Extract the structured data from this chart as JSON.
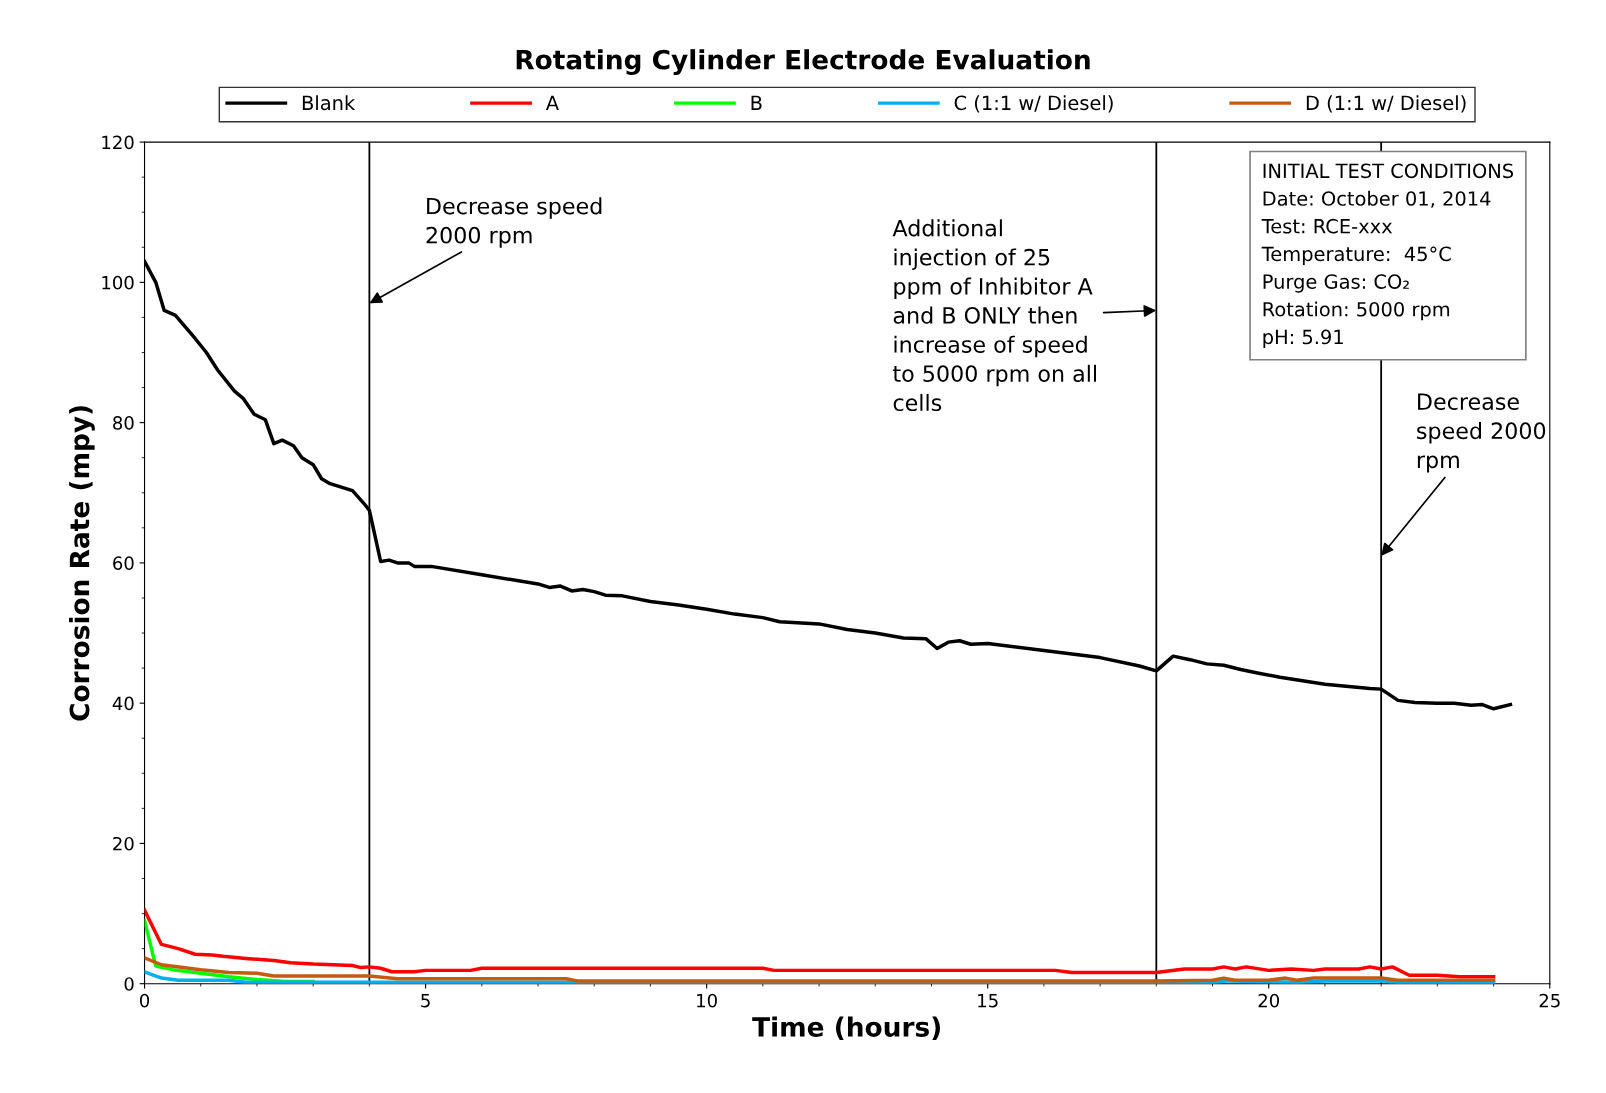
{
  "chart_data": {
    "type": "line",
    "title": "Rotating Cylinder Electrode Evaluation",
    "xlabel": "Time (hours)",
    "ylabel": "Corrosion Rate (mpy)",
    "xlim": [
      0,
      25
    ],
    "xticks": [
      0,
      5,
      10,
      15,
      20,
      25
    ],
    "ylim": [
      0,
      120
    ],
    "yticks": [
      0,
      20,
      40,
      60,
      80,
      100,
      120
    ],
    "grid": false,
    "legend": "top",
    "marker": "none",
    "line_style": "solid",
    "series": [
      {
        "name": "Blank",
        "color": "#000000",
        "x": [
          0,
          0.2,
          0.35,
          0.55,
          0.9,
          1.1,
          1.3,
          1.6,
          1.75,
          1.95,
          2.15,
          2.3,
          2.45,
          2.65,
          2.8,
          3.0,
          3.15,
          3.3,
          3.5,
          3.7,
          3.9,
          4.0,
          4.2,
          4.35,
          4.5,
          4.7,
          4.8,
          5.1,
          6,
          7,
          7.2,
          7.4,
          7.6,
          7.8,
          8,
          8.2,
          8.5,
          9,
          9.5,
          10,
          10.5,
          11,
          11.3,
          12,
          12.5,
          13,
          13.5,
          13.9,
          14.1,
          14.3,
          14.5,
          14.7,
          15,
          16,
          17,
          17.7,
          18,
          18.3,
          18.6,
          18.9,
          19.2,
          19.5,
          19.8,
          20.2,
          21,
          21.8,
          22,
          22.3,
          22.6,
          23.0,
          23.3,
          23.6,
          23.8,
          24.0,
          24.3
        ],
        "values": [
          103,
          100,
          96,
          95.3,
          92,
          90,
          87.5,
          84.5,
          83.5,
          81.2,
          80.4,
          77,
          77.5,
          76.7,
          75,
          74,
          72,
          71.3,
          70.8,
          70.3,
          68.5,
          67.5,
          60.2,
          60.4,
          60,
          60,
          59.5,
          59.5,
          58.3,
          57,
          56.5,
          56.7,
          56,
          56.2,
          55.9,
          55.4,
          55.3,
          54.5,
          54,
          53.4,
          52.7,
          52.2,
          51.6,
          51.3,
          50.5,
          50,
          49.3,
          49.2,
          47.8,
          48.7,
          48.9,
          48.4,
          48.5,
          47.5,
          46.5,
          45.3,
          44.6,
          46.7,
          46.2,
          45.6,
          45.4,
          44.8,
          44.3,
          43.7,
          42.7,
          42.1,
          42,
          40.4,
          40.1,
          40,
          40,
          39.7,
          39.8,
          39.2,
          39.8
        ]
      },
      {
        "name": "A",
        "color": "#ff0000",
        "x": [
          0,
          0.3,
          0.6,
          0.9,
          1.2,
          1.4,
          1.8,
          2.3,
          2.6,
          3,
          3.7,
          3.85,
          4,
          4.2,
          4.4,
          4.8,
          5,
          5.8,
          6,
          11,
          11.2,
          16.2,
          16.5,
          18,
          18.5,
          19,
          19.2,
          19.4,
          19.6,
          20,
          20.4,
          20.8,
          21,
          21.6,
          21.8,
          22,
          22.2,
          22.5,
          23,
          23.4,
          24
        ],
        "values": [
          10.5,
          5.6,
          5,
          4.2,
          4.1,
          3.9,
          3.6,
          3.3,
          3,
          2.8,
          2.6,
          2.3,
          2.4,
          2.2,
          1.7,
          1.7,
          1.9,
          1.9,
          2.2,
          2.2,
          1.9,
          1.9,
          1.6,
          1.6,
          2.1,
          2.1,
          2.4,
          2.1,
          2.4,
          1.9,
          2.1,
          1.9,
          2.1,
          2.1,
          2.4,
          2.1,
          2.4,
          1.2,
          1.2,
          1.0,
          1.0
        ]
      },
      {
        "name": "B",
        "color": "#00ff00",
        "x": [
          0,
          0.2,
          0.5,
          1,
          1.5,
          2,
          2.5,
          3
        ],
        "values": [
          9,
          2.5,
          2,
          1.5,
          1,
          0.6,
          0.3,
          0.3
        ]
      },
      {
        "name": "C (1:1 w/ Diesel)",
        "color": "#00b0f0",
        "x": [
          0,
          0.3,
          0.6,
          1.5,
          1.8,
          18,
          19,
          19.3,
          20.5,
          21,
          22,
          22.3,
          24
        ],
        "values": [
          1.7,
          0.8,
          0.5,
          0.5,
          0.2,
          0.2,
          0.2,
          0.4,
          0.2,
          0.4,
          0.4,
          0.2,
          0.2
        ]
      },
      {
        "name": "D (1:1 w/ Diesel)",
        "color": "#c55a11",
        "x": [
          0,
          0.3,
          1,
          1.5,
          2,
          2.3,
          4,
          4.5,
          7.5,
          7.7,
          18,
          19,
          19.2,
          19.4,
          20,
          20.3,
          20.5,
          20.8,
          22,
          22.3,
          24
        ],
        "values": [
          3.7,
          2.7,
          2,
          1.6,
          1.5,
          1.1,
          1.1,
          0.7,
          0.7,
          0.4,
          0.4,
          0.5,
          0.8,
          0.5,
          0.5,
          0.8,
          0.5,
          0.8,
          0.8,
          0.5,
          0.5
        ]
      }
    ],
    "ref_lines": [
      {
        "axis": "x",
        "value": 4,
        "color": "#000000"
      },
      {
        "axis": "x",
        "value": 18,
        "color": "#000000"
      },
      {
        "axis": "x",
        "value": 22,
        "color": "#000000"
      }
    ],
    "annotations": [
      {
        "text": "Decrease speed\n2000 rpm",
        "x": 4,
        "y": 97
      },
      {
        "text": "Additional\ninjection of 25\nppm of Inhibitor A\nand B ONLY then\nincrease of speed\nto 5000 rpm on all\ncells",
        "x": 18,
        "y": 96
      },
      {
        "text": "Decrease\nspeed 2000\nrpm",
        "x": 22,
        "y": 61
      },
      "INITIAL TEST CONDITIONS\nDate: October 01, 2014\nTest: RCE-xxx\nTemperature:  45°C\nPurge Gas: CO₂\nRotation: 5000 rpm\npH: 5.91"
    ]
  }
}
